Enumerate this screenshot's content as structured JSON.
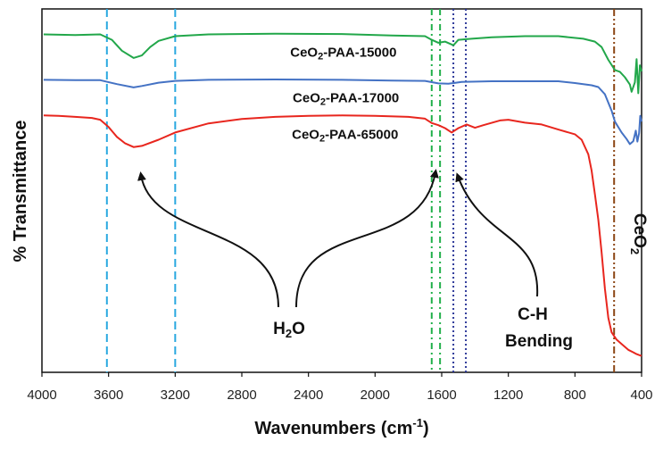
{
  "chart_data": {
    "type": "line",
    "title": "",
    "xlabel": "Wavenumbers (cm",
    "xlabel_sup": "-1",
    "xlabel_close": ")",
    "ylabel": "% Transmittance",
    "xlim": [
      4000,
      400
    ],
    "x_reversed": true,
    "x_ticks": [
      4000,
      3600,
      3200,
      2800,
      2400,
      2000,
      1600,
      1200,
      800,
      400
    ],
    "x_tick_labels": [
      "4000",
      "3600",
      "3200",
      "2800",
      "2400",
      "2000",
      "1600",
      "1200",
      "800",
      "400"
    ],
    "y_ticks_shown": false,
    "grid": false,
    "series": [
      {
        "name": "CeO2-PAA-15000",
        "color": "#22a74a",
        "points": [
          [
            3990,
            0.93
          ],
          [
            3800,
            0.928
          ],
          [
            3650,
            0.93
          ],
          [
            3580,
            0.915
          ],
          [
            3520,
            0.885
          ],
          [
            3450,
            0.865
          ],
          [
            3400,
            0.872
          ],
          [
            3350,
            0.895
          ],
          [
            3300,
            0.912
          ],
          [
            3200,
            0.925
          ],
          [
            3000,
            0.93
          ],
          [
            2600,
            0.932
          ],
          [
            2200,
            0.931
          ],
          [
            1900,
            0.927
          ],
          [
            1700,
            0.925
          ],
          [
            1660,
            0.915
          ],
          [
            1620,
            0.907
          ],
          [
            1580,
            0.91
          ],
          [
            1530,
            0.9
          ],
          [
            1500,
            0.915
          ],
          [
            1420,
            0.918
          ],
          [
            1300,
            0.922
          ],
          [
            1100,
            0.925
          ],
          [
            900,
            0.925
          ],
          [
            750,
            0.918
          ],
          [
            680,
            0.91
          ],
          [
            640,
            0.895
          ],
          [
            600,
            0.86
          ],
          [
            560,
            0.832
          ],
          [
            530,
            0.827
          ],
          [
            500,
            0.812
          ],
          [
            470,
            0.792
          ],
          [
            460,
            0.772
          ],
          [
            440,
            0.798
          ],
          [
            430,
            0.862
          ],
          [
            420,
            0.768
          ],
          [
            410,
            0.845
          ],
          [
            400,
            0.828
          ]
        ]
      },
      {
        "name": "CeO2-PAA-17000",
        "color": "#4472c4",
        "points": [
          [
            3990,
            0.805
          ],
          [
            3800,
            0.804
          ],
          [
            3650,
            0.804
          ],
          [
            3550,
            0.793
          ],
          [
            3450,
            0.784
          ],
          [
            3400,
            0.788
          ],
          [
            3300,
            0.797
          ],
          [
            3200,
            0.802
          ],
          [
            3000,
            0.805
          ],
          [
            2600,
            0.806
          ],
          [
            2200,
            0.805
          ],
          [
            1900,
            0.803
          ],
          [
            1700,
            0.802
          ],
          [
            1620,
            0.795
          ],
          [
            1560,
            0.794
          ],
          [
            1480,
            0.799
          ],
          [
            1300,
            0.801
          ],
          [
            1100,
            0.801
          ],
          [
            900,
            0.801
          ],
          [
            800,
            0.796
          ],
          [
            700,
            0.79
          ],
          [
            660,
            0.785
          ],
          [
            620,
            0.765
          ],
          [
            580,
            0.72
          ],
          [
            560,
            0.69
          ],
          [
            520,
            0.66
          ],
          [
            490,
            0.642
          ],
          [
            470,
            0.628
          ],
          [
            450,
            0.636
          ],
          [
            435,
            0.665
          ],
          [
            425,
            0.635
          ],
          [
            415,
            0.658
          ],
          [
            408,
            0.706
          ],
          [
            400,
            0.69
          ]
        ]
      },
      {
        "name": "CeO2-PAA-65000",
        "color": "#e8261e",
        "points": [
          [
            3990,
            0.707
          ],
          [
            3900,
            0.706
          ],
          [
            3800,
            0.703
          ],
          [
            3700,
            0.7
          ],
          [
            3650,
            0.695
          ],
          [
            3600,
            0.675
          ],
          [
            3550,
            0.648
          ],
          [
            3500,
            0.63
          ],
          [
            3450,
            0.62
          ],
          [
            3400,
            0.623
          ],
          [
            3300,
            0.64
          ],
          [
            3200,
            0.66
          ],
          [
            3000,
            0.685
          ],
          [
            2800,
            0.697
          ],
          [
            2600,
            0.703
          ],
          [
            2400,
            0.706
          ],
          [
            2200,
            0.707
          ],
          [
            2000,
            0.706
          ],
          [
            1800,
            0.703
          ],
          [
            1700,
            0.698
          ],
          [
            1660,
            0.686
          ],
          [
            1620,
            0.68
          ],
          [
            1580,
            0.672
          ],
          [
            1540,
            0.66
          ],
          [
            1500,
            0.672
          ],
          [
            1450,
            0.682
          ],
          [
            1400,
            0.673
          ],
          [
            1350,
            0.68
          ],
          [
            1250,
            0.693
          ],
          [
            1200,
            0.695
          ],
          [
            1100,
            0.687
          ],
          [
            1000,
            0.682
          ],
          [
            900,
            0.668
          ],
          [
            800,
            0.655
          ],
          [
            760,
            0.64
          ],
          [
            720,
            0.6
          ],
          [
            700,
            0.555
          ],
          [
            680,
            0.49
          ],
          [
            660,
            0.42
          ],
          [
            640,
            0.33
          ],
          [
            620,
            0.23
          ],
          [
            600,
            0.15
          ],
          [
            580,
            0.11
          ],
          [
            550,
            0.09
          ],
          [
            500,
            0.07
          ],
          [
            480,
            0.062
          ],
          [
            450,
            0.055
          ],
          [
            430,
            0.05
          ],
          [
            400,
            0.045
          ]
        ]
      }
    ],
    "series_labels": [
      {
        "series": 0,
        "prefix": "CeO",
        "sub": "2",
        "suffix": "-PAA-15000",
        "at": [
          2190,
          0.868
        ]
      },
      {
        "series": 1,
        "prefix": "CeO",
        "sub": "2",
        "suffix": "-PAA-17000",
        "at": [
          2175,
          0.743
        ]
      },
      {
        "series": 2,
        "prefix": "CeO",
        "sub": "2",
        "suffix": "-PAA-65000",
        "at": [
          2180,
          0.642
        ]
      }
    ],
    "reference_lines": [
      {
        "x": 3610,
        "color": "#29a8e0",
        "style": "dashed"
      },
      {
        "x": 3200,
        "color": "#29a8e0",
        "style": "dashed"
      },
      {
        "x": 1660,
        "color": "#22b04b",
        "style": "dashdot"
      },
      {
        "x": 1610,
        "color": "#22b04b",
        "style": "dashdot"
      },
      {
        "x": 1530,
        "color": "#2f3a9a",
        "style": "dotted"
      },
      {
        "x": 1455,
        "color": "#2f3a9a",
        "style": "dotted"
      },
      {
        "x": 565,
        "color": "#8b4513",
        "style": "dashdotdot"
      }
    ],
    "annotations": [
      {
        "id": "h2o",
        "prefix": "H",
        "sub": "2",
        "suffix": "O"
      },
      {
        "id": "ch",
        "line1": "C-H",
        "line2": "Bending"
      },
      {
        "id": "ceo2",
        "prefix": "CeO",
        "sub": "2",
        "rotated": true
      }
    ]
  }
}
